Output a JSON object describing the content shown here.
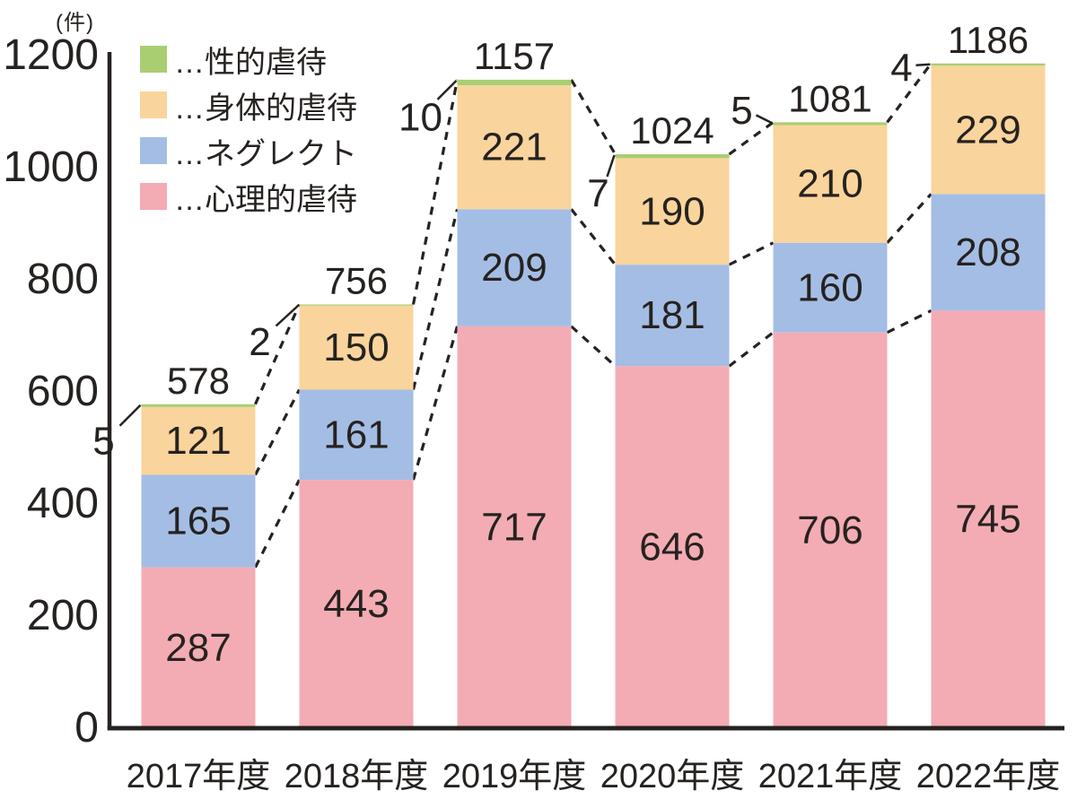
{
  "colors": {
    "sexual": "#a9ce72",
    "physical": "#f9d49c",
    "neglect": "#a4bde4",
    "psychological": "#f3acb4",
    "axis": "#262220",
    "text": "#262220"
  },
  "legend": [
    {
      "label": "…性的虐待",
      "color": "#a9ce72"
    },
    {
      "label": "…身体的虐待",
      "color": "#f9d49c"
    },
    {
      "label": "…ネグレクト",
      "color": "#a4bde4"
    },
    {
      "label": "…心理的虐待",
      "color": "#f3acb4"
    }
  ],
  "chart_data": {
    "type": "bar",
    "stacked": true,
    "title": "",
    "unit": "(件)",
    "categories": [
      "2017年度",
      "2018年度",
      "2019年度",
      "2020年度",
      "2021年度",
      "2022年度"
    ],
    "series": [
      {
        "name": "心理的虐待",
        "color": "#f3acb4",
        "values": [
          287,
          443,
          717,
          646,
          706,
          745
        ]
      },
      {
        "name": "ネグレクト",
        "color": "#a4bde4",
        "values": [
          165,
          161,
          209,
          181,
          160,
          208
        ]
      },
      {
        "name": "身体的虐待",
        "color": "#f9d49c",
        "values": [
          121,
          150,
          221,
          190,
          210,
          229
        ]
      },
      {
        "name": "性的虐待",
        "color": "#a9ce72",
        "values": [
          5,
          2,
          10,
          7,
          5,
          4
        ]
      }
    ],
    "totals": [
      578,
      756,
      1157,
      1024,
      1081,
      1186
    ],
    "yticks": [
      0,
      200,
      400,
      600,
      800,
      1000,
      1200
    ],
    "ylim": [
      0,
      1200
    ],
    "grid": false,
    "legend_position": "top-left",
    "annotations": "dashed lines connect bar totals, neglect-top and psychological-top boundaries between adjacent bars; small sexual-abuse values labeled beside bar tops with leader lines"
  }
}
